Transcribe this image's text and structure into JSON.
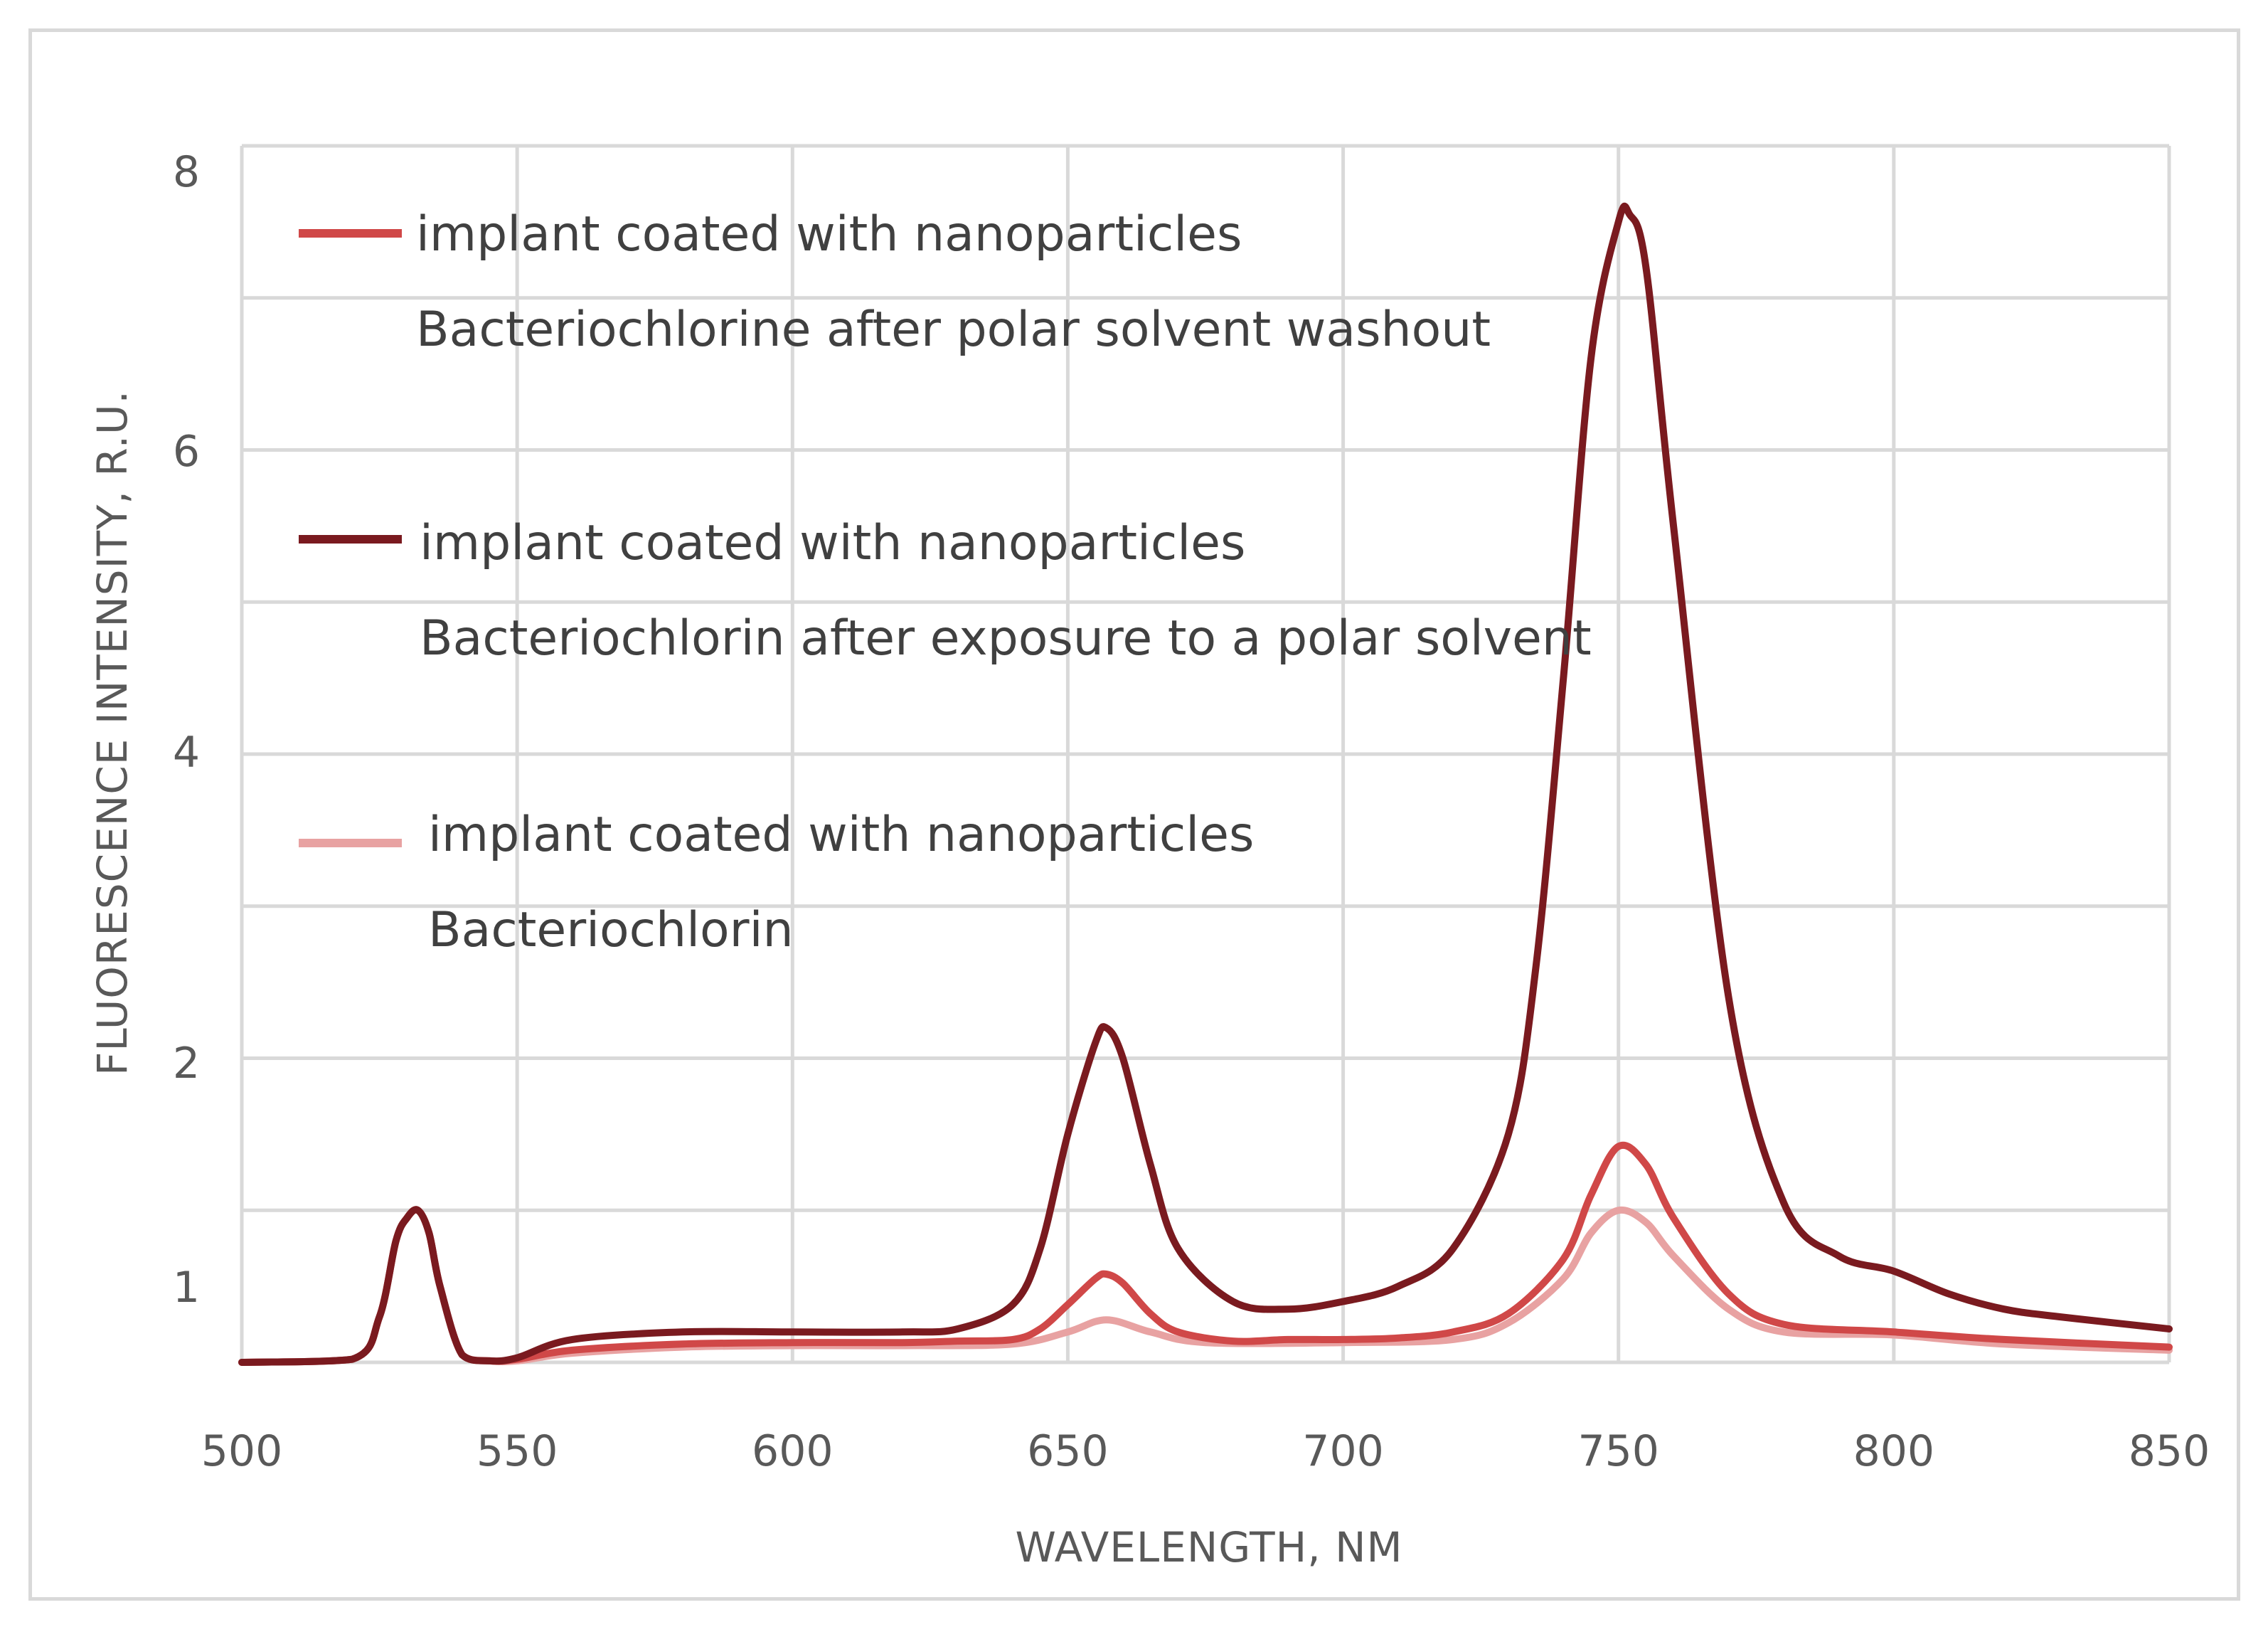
{
  "chart_data": {
    "type": "line",
    "title": "",
    "xlabel": "WAVELENGTH, NM",
    "ylabel": "FLUORESCENCE INTENSITY, R.U.",
    "xlim": [
      500,
      850
    ],
    "ylim": [
      0,
      8
    ],
    "x_ticks": [
      500,
      550,
      600,
      650,
      700,
      750,
      800,
      850
    ],
    "y_tick_labels": [
      "1",
      "2",
      "4",
      "6",
      "8"
    ],
    "grid": true,
    "legend_position": "top-left",
    "series": [
      {
        "name": "implant coated with nanoparticles Bacteriochlorine after polar solvent washout",
        "legend_line1": "implant coated with nanoparticles",
        "legend_line2": "Bacteriochlorine after polar solvent washout",
        "color": "#d04848",
        "x": [
          500,
          520,
          525,
          528,
          530,
          532,
          534,
          536,
          540,
          545,
          550,
          560,
          580,
          600,
          620,
          630,
          640,
          645,
          650,
          655,
          657,
          660,
          665,
          670,
          680,
          690,
          700,
          710,
          720,
          730,
          740,
          745,
          750,
          755,
          760,
          770,
          780,
          800,
          820,
          850
        ],
        "y": [
          0.0,
          0.02,
          0.3,
          0.8,
          0.95,
          1.0,
          0.85,
          0.5,
          0.05,
          0.01,
          0.02,
          0.08,
          0.12,
          0.13,
          0.13,
          0.14,
          0.15,
          0.22,
          0.38,
          0.55,
          0.58,
          0.52,
          0.32,
          0.2,
          0.14,
          0.15,
          0.15,
          0.16,
          0.2,
          0.32,
          0.68,
          1.1,
          1.42,
          1.3,
          0.95,
          0.45,
          0.25,
          0.2,
          0.15,
          0.1
        ]
      },
      {
        "name": "implant coated with nanoparticles Bacteriochlorin after exposure to a polar solvent",
        "legend_line1": "implant coated with nanoparticles",
        "legend_line2": "Bacteriochlorin after exposure to a polar solvent",
        "color": "#7a1a1f",
        "x": [
          500,
          520,
          525,
          528,
          530,
          532,
          534,
          536,
          540,
          545,
          550,
          560,
          580,
          600,
          620,
          630,
          640,
          645,
          650,
          655,
          657,
          660,
          665,
          670,
          680,
          690,
          700,
          710,
          720,
          730,
          735,
          740,
          745,
          750,
          752,
          755,
          760,
          770,
          780,
          790,
          800,
          810,
          820,
          830,
          850
        ],
        "y": [
          0.0,
          0.02,
          0.3,
          0.8,
          0.95,
          1.0,
          0.85,
          0.5,
          0.05,
          0.01,
          0.03,
          0.15,
          0.2,
          0.2,
          0.2,
          0.22,
          0.38,
          0.75,
          1.5,
          2.1,
          2.2,
          2.0,
          1.3,
          0.75,
          0.4,
          0.35,
          0.4,
          0.5,
          0.75,
          1.5,
          2.6,
          4.5,
          6.6,
          7.5,
          7.55,
          7.2,
          5.5,
          2.4,
          1.05,
          0.7,
          0.6,
          0.45,
          0.35,
          0.3,
          0.22
        ]
      },
      {
        "name": "implant coated with nanoparticles Bacteriochlorin",
        "legend_line1": "implant coated with nanoparticles",
        "legend_line2": "Bacteriochlorin",
        "color": "#e8a2a2",
        "x": [
          500,
          520,
          525,
          528,
          530,
          532,
          534,
          536,
          540,
          545,
          550,
          560,
          580,
          600,
          620,
          640,
          650,
          657,
          665,
          675,
          700,
          720,
          730,
          740,
          745,
          750,
          755,
          760,
          770,
          780,
          800,
          820,
          850
        ],
        "y": [
          0.0,
          0.02,
          0.3,
          0.8,
          0.95,
          1.0,
          0.85,
          0.5,
          0.05,
          0.01,
          0.01,
          0.06,
          0.1,
          0.11,
          0.11,
          0.12,
          0.2,
          0.28,
          0.2,
          0.13,
          0.13,
          0.15,
          0.26,
          0.55,
          0.85,
          1.0,
          0.92,
          0.7,
          0.35,
          0.2,
          0.18,
          0.12,
          0.08
        ]
      }
    ]
  }
}
